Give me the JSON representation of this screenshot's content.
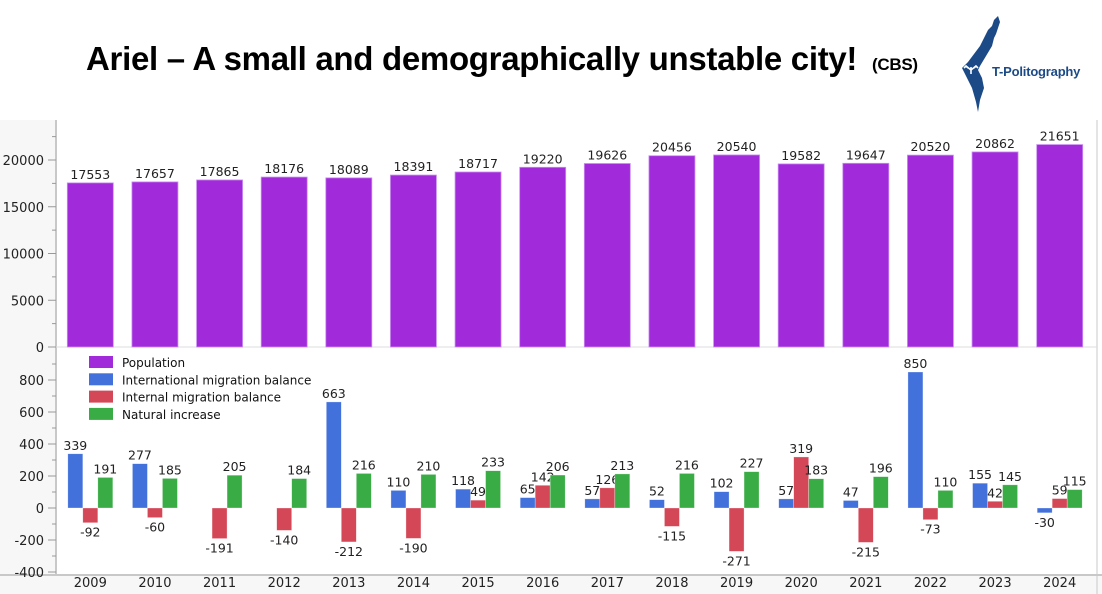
{
  "header": {
    "title": "Ariel – A small and demographically unstable city!",
    "source": "(CBS)",
    "logo_text": "T-Politography",
    "logo_color": "#1b4a87"
  },
  "chart_data": [
    {
      "type": "bar",
      "panel": "top",
      "categories": [
        "2009",
        "2010",
        "2011",
        "2012",
        "2013",
        "2014",
        "2015",
        "2016",
        "2017",
        "2018",
        "2019",
        "2020",
        "2021",
        "2022",
        "2023",
        "2024"
      ],
      "series": [
        {
          "name": "Population",
          "color": "#a12adb",
          "values": [
            17553,
            17657,
            17865,
            18176,
            18089,
            18391,
            18717,
            19220,
            19626,
            20456,
            20540,
            19582,
            19647,
            20520,
            20862,
            21651
          ]
        }
      ],
      "ylim": [
        0,
        24000
      ],
      "yticks": [
        0,
        5000,
        10000,
        15000,
        20000
      ],
      "ytick_labels": [
        "0",
        "5000",
        "10000",
        "15000",
        "20000"
      ],
      "xlabel": "",
      "ylabel": "",
      "grid": false
    },
    {
      "type": "bar",
      "panel": "bottom",
      "categories": [
        "2009",
        "2010",
        "2011",
        "2012",
        "2013",
        "2014",
        "2015",
        "2016",
        "2017",
        "2018",
        "2019",
        "2020",
        "2021",
        "2022",
        "2023",
        "2024"
      ],
      "series": [
        {
          "name": "International migration balance",
          "color": "#4271db",
          "values": [
            339,
            277,
            null,
            null,
            663,
            110,
            118,
            65,
            57,
            52,
            102,
            57,
            47,
            850,
            155,
            -30
          ]
        },
        {
          "name": "Internal migration balance",
          "color": "#d44757",
          "values": [
            -92,
            -60,
            -191,
            -140,
            -212,
            -190,
            49,
            142,
            126,
            -115,
            -271,
            319,
            -215,
            -73,
            42,
            59
          ]
        },
        {
          "name": "Natural increase",
          "color": "#3aac45",
          "values": [
            191,
            185,
            205,
            184,
            216,
            210,
            233,
            206,
            213,
            216,
            227,
            183,
            196,
            110,
            145,
            115
          ]
        }
      ],
      "ylim": [
        -400,
        980
      ],
      "yticks": [
        -400,
        -200,
        0,
        200,
        400,
        600,
        800
      ],
      "ytick_labels": [
        "-400",
        "-200",
        "0",
        "200",
        "400",
        "600",
        "800"
      ],
      "xlabel": "",
      "ylabel": "",
      "grid": false
    }
  ],
  "legend": {
    "placement": "top-left of bottom panel",
    "items": [
      {
        "label": "Population",
        "color": "#a12adb"
      },
      {
        "label": "International migration balance",
        "color": "#4271db"
      },
      {
        "label": "Internal migration balance",
        "color": "#d44757"
      },
      {
        "label": "Natural increase",
        "color": "#3aac45"
      }
    ]
  }
}
